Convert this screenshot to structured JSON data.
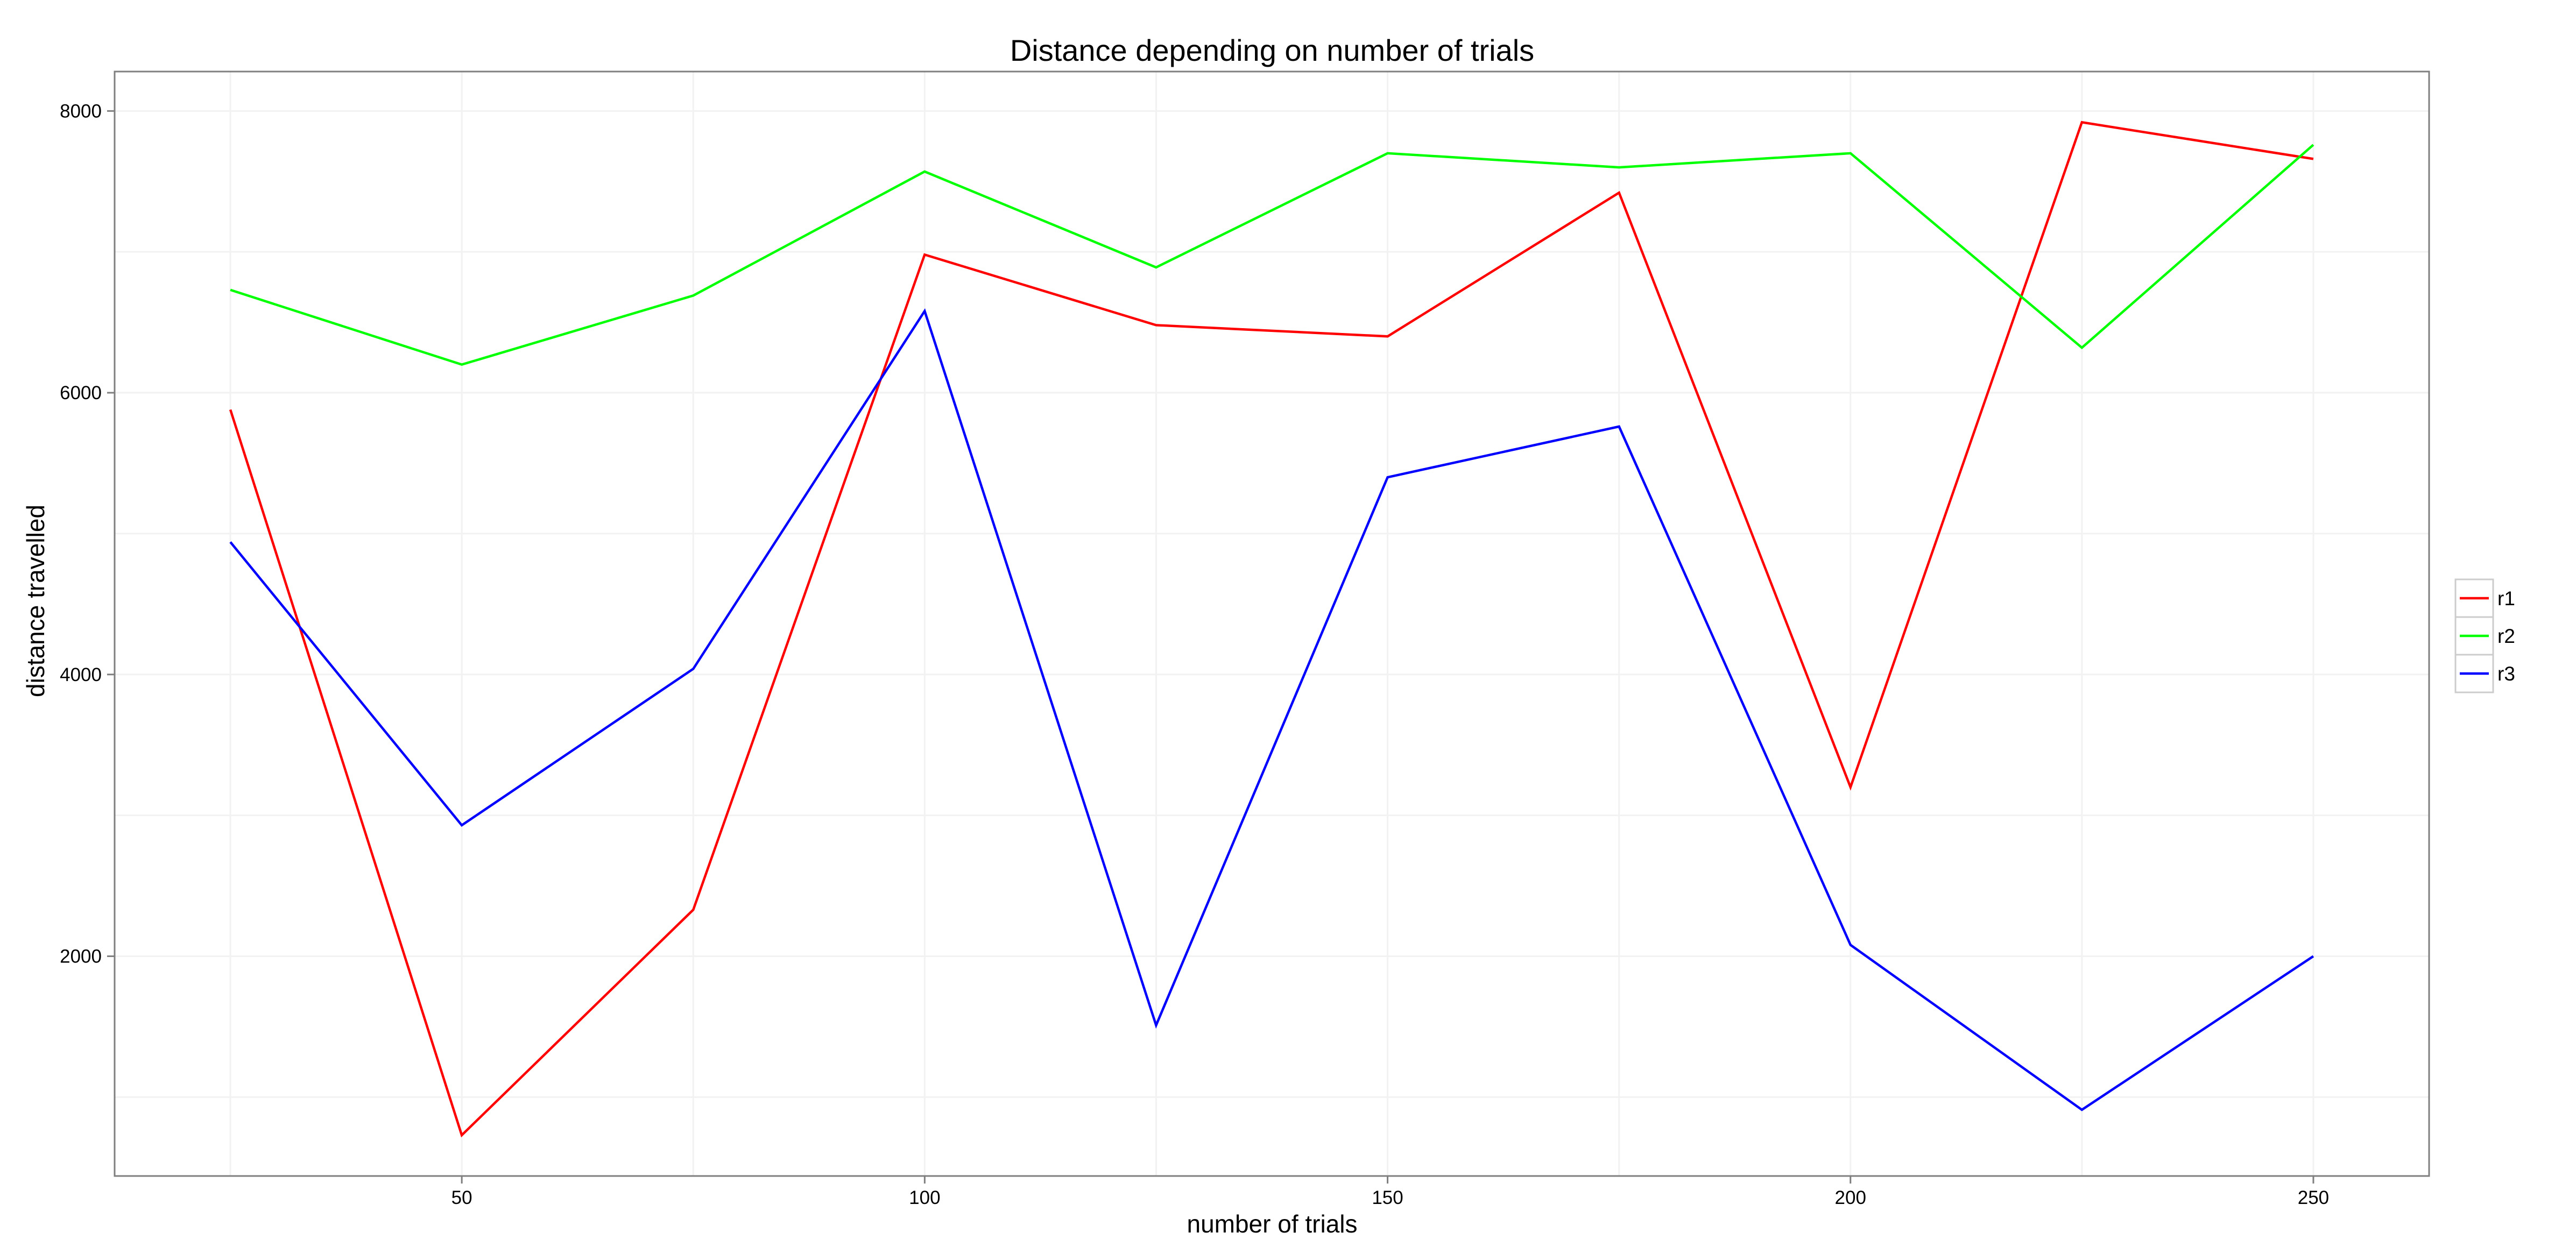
{
  "chart_data": {
    "type": "line",
    "title": "Distance depending on number of trials",
    "xlabel": "number of trials",
    "ylabel": "distance travelled",
    "x": [
      25,
      50,
      75,
      100,
      125,
      150,
      175,
      200,
      225,
      250
    ],
    "x_ticks": [
      50,
      100,
      150,
      200,
      250
    ],
    "y_ticks": [
      2000,
      4000,
      6000,
      8000
    ],
    "xlim": [
      12.5,
      262.5
    ],
    "ylim": [
      440,
      8280
    ],
    "grid": true,
    "legend_position": "right",
    "series": [
      {
        "name": "r1",
        "color": "#ff0000",
        "values": [
          5880,
          730,
          2330,
          6980,
          6480,
          6400,
          7420,
          3200,
          7920,
          7660
        ]
      },
      {
        "name": "r2",
        "color": "#00ff00",
        "values": [
          6730,
          6200,
          6690,
          7570,
          6890,
          7700,
          7600,
          7700,
          6320,
          7760
        ]
      },
      {
        "name": "r3",
        "color": "#0000ff",
        "values": [
          4940,
          2930,
          4040,
          6580,
          1510,
          5400,
          5760,
          2080,
          910,
          2000
        ]
      }
    ]
  }
}
